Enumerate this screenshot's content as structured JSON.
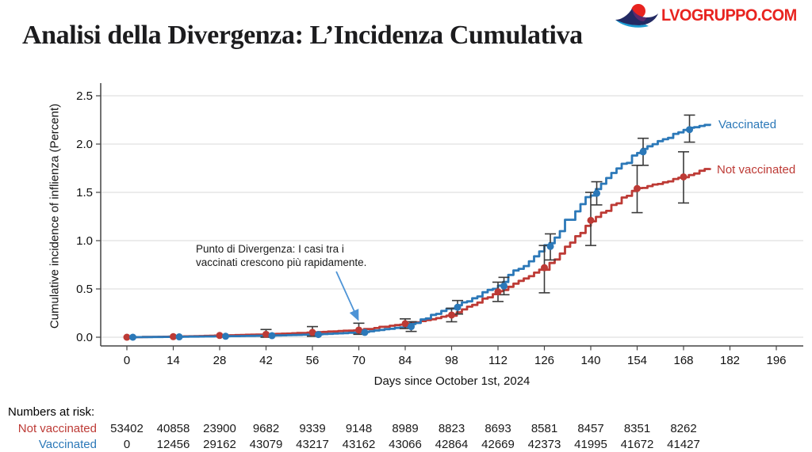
{
  "logo": {
    "text": "LVOGRUPPO.COM",
    "color": "#e8231f",
    "icon": "swan-icon"
  },
  "title": "Analisi della Divergenza: L’Incidenza Cumulativa",
  "chart_data": {
    "type": "line",
    "subtype": "kaplan-meier-cumulative-incidence-step",
    "title": "",
    "xlabel": "Days since October 1st, 2024",
    "ylabel": "Cumulative incidence of inflienza (Percent)",
    "xlim": [
      0,
      204
    ],
    "ylim": [
      0,
      2.64
    ],
    "xticks": [
      0,
      14,
      28,
      42,
      56,
      70,
      84,
      98,
      112,
      126,
      140,
      154,
      168,
      182,
      196
    ],
    "yticks": [
      "0.0",
      "0.5",
      "1.0",
      "1.5",
      "2.0",
      "2.5"
    ],
    "grid": "horizontal",
    "legend_position": "right-of-line-ends",
    "axis_color": "#444444",
    "grid_color": "#d8d8d8",
    "error_bar_color": "#3a3a3a",
    "series": [
      {
        "name": "Not vaccinated",
        "color": "#bd3a35",
        "x_offset_days": 0,
        "marker_days": [
          0,
          14,
          28,
          42,
          56,
          70,
          84,
          98,
          112,
          126,
          140,
          154,
          168
        ],
        "anchors": [
          [
            0,
            0
          ],
          [
            14,
            0.006
          ],
          [
            28,
            0.018
          ],
          [
            42,
            0.03
          ],
          [
            56,
            0.05
          ],
          [
            70,
            0.074
          ],
          [
            84,
            0.14
          ],
          [
            98,
            0.23
          ],
          [
            112,
            0.47
          ],
          [
            126,
            0.72
          ],
          [
            140,
            1.21
          ],
          [
            154,
            1.54
          ],
          [
            168,
            1.66
          ],
          [
            176,
            1.75
          ]
        ],
        "error_bars": [
          [
            42,
            0.0,
            0.08
          ],
          [
            56,
            0.01,
            0.11
          ],
          [
            70,
            0.03,
            0.145
          ],
          [
            84,
            0.09,
            0.19
          ],
          [
            98,
            0.16,
            0.3
          ],
          [
            112,
            0.37,
            0.57
          ],
          [
            126,
            0.46,
            0.95
          ],
          [
            140,
            0.95,
            1.5
          ],
          [
            154,
            1.29,
            1.78
          ],
          [
            168,
            1.39,
            1.92
          ]
        ]
      },
      {
        "name": "Vaccinated",
        "color": "#2b78b8",
        "x_offset_days": 1.8,
        "marker_days": [
          0,
          14,
          28,
          42,
          56,
          70,
          84,
          98,
          112,
          126,
          140,
          154,
          168
        ],
        "anchors": [
          [
            0,
            0
          ],
          [
            14,
            0.004
          ],
          [
            28,
            0.01
          ],
          [
            42,
            0.016
          ],
          [
            56,
            0.028
          ],
          [
            70,
            0.05
          ],
          [
            84,
            0.11
          ],
          [
            98,
            0.31
          ],
          [
            112,
            0.53
          ],
          [
            126,
            0.94
          ],
          [
            140,
            1.49
          ],
          [
            154,
            1.92
          ],
          [
            168,
            2.15
          ],
          [
            176,
            2.21
          ]
        ],
        "error_bars": [
          [
            84,
            0.06,
            0.16
          ],
          [
            98,
            0.24,
            0.38
          ],
          [
            112,
            0.44,
            0.62
          ],
          [
            126,
            0.8,
            1.07
          ],
          [
            140,
            1.37,
            1.61
          ],
          [
            154,
            1.78,
            2.06
          ],
          [
            168,
            2.02,
            2.3
          ]
        ]
      }
    ],
    "annotation": {
      "text": "Punto di Divergenza: I casi tra i vaccinati crescono più rapidamente.",
      "arrow_color": "#4e94d6",
      "arrow_from": {
        "day": 63.2,
        "value": 0.68
      },
      "arrow_to": {
        "day": 69.8,
        "value": 0.18
      }
    }
  },
  "numbers_at_risk": {
    "title": "Numbers at risk:",
    "days": [
      0,
      14,
      28,
      42,
      56,
      70,
      84,
      98,
      112,
      126,
      140,
      154,
      168
    ],
    "rows": [
      {
        "name": "Not vaccinated",
        "color": "#bd3a35",
        "values": [
          "53402",
          "40858",
          "23900",
          "9682",
          "9339",
          "9148",
          "8989",
          "8823",
          "8693",
          "8581",
          "8457",
          "8351",
          "8262"
        ]
      },
      {
        "name": "Vaccinated",
        "color": "#2b78b8",
        "values": [
          "0",
          "12456",
          "29162",
          "43079",
          "43217",
          "43162",
          "43066",
          "42864",
          "42669",
          "42373",
          "41995",
          "41672",
          "41427"
        ]
      }
    ]
  }
}
